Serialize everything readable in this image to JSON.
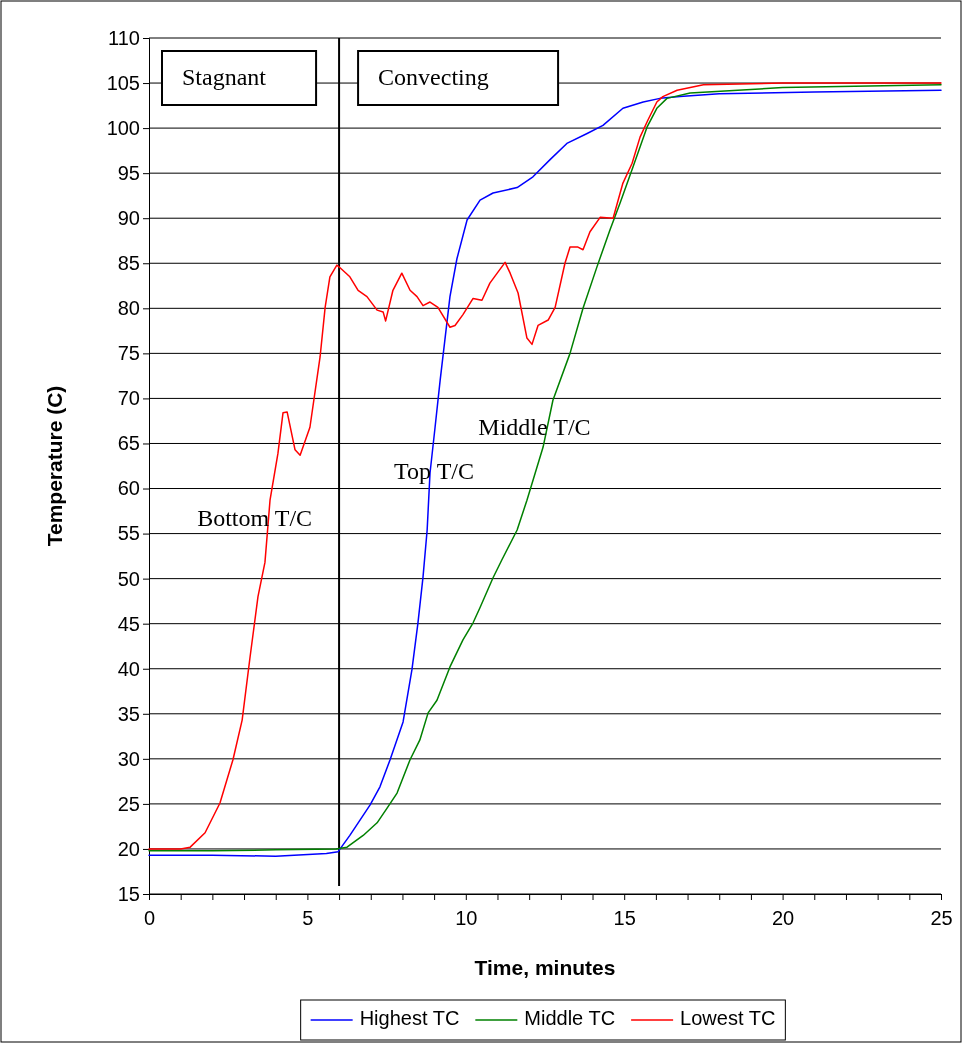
{
  "chart_data": {
    "type": "line",
    "xlabel": "Time, minutes",
    "ylabel": "Temperature (C)",
    "xlim": [
      0,
      25
    ],
    "ylim": [
      15,
      110
    ],
    "xticks": [
      0,
      {
        "value": 1,
        "label": null
      },
      {
        "value": 2,
        "label": null
      },
      {
        "value": 3,
        "label": null
      },
      {
        "value": 4,
        "label": null
      },
      5,
      {
        "value": 6,
        "label": null
      },
      {
        "value": 7,
        "label": null
      },
      {
        "value": 8,
        "label": null
      },
      {
        "value": 9,
        "label": null
      },
      10,
      {
        "value": 11,
        "label": null
      },
      {
        "value": 12,
        "label": null
      },
      {
        "value": 13,
        "label": null
      },
      {
        "value": 14,
        "label": null
      },
      15,
      {
        "value": 16,
        "label": null
      },
      {
        "value": 17,
        "label": null
      },
      {
        "value": 18,
        "label": null
      },
      {
        "value": 19,
        "label": null
      },
      20,
      {
        "value": 21,
        "label": null
      },
      {
        "value": 22,
        "label": null
      },
      {
        "value": 23,
        "label": null
      },
      {
        "value": 24,
        "label": null
      },
      25
    ],
    "yticks": [
      15,
      20,
      25,
      30,
      35,
      40,
      45,
      50,
      55,
      60,
      65,
      70,
      75,
      80,
      85,
      90,
      95,
      100,
      105,
      110
    ],
    "grid": "y",
    "legend": "bottom",
    "marker": "none",
    "line_style": "solid",
    "series": [
      {
        "name": "Highest TC",
        "color": "#0000ff",
        "x": [
          0,
          2,
          4,
          5.6,
          5.97,
          6.34,
          6.66,
          6.98,
          7.29,
          7.61,
          8.02,
          8.3,
          8.49,
          8.65,
          8.78,
          8.87,
          9.03,
          9.19,
          9.34,
          9.5,
          9.72,
          10.04,
          10.45,
          10.86,
          11.62,
          12.12,
          12.66,
          13.19,
          13.83,
          14.33,
          14.96,
          15.6,
          16.13,
          16.76,
          18,
          21,
          25
        ],
        "values": [
          19.3,
          19.3,
          19.2,
          19.5,
          19.7,
          21.5,
          23.2,
          24.9,
          26.9,
          29.9,
          34.1,
          39.9,
          45.1,
          50.2,
          55.4,
          61.7,
          66.8,
          72,
          76.5,
          81.3,
          85.5,
          89.8,
          92,
          92.8,
          93.4,
          94.6,
          96.5,
          98.3,
          99.4,
          100.3,
          102.2,
          102.9,
          103.3,
          103.5,
          103.8,
          104,
          104.2
        ]
      },
      {
        "name": "Middle TC",
        "color": "#008000",
        "x": [
          0,
          2,
          4,
          5.9,
          6.25,
          6.76,
          7.2,
          7.51,
          7.83,
          8.24,
          8.55,
          8.81,
          9.09,
          9.5,
          9.91,
          10.23,
          10.45,
          10.86,
          11.14,
          11.62,
          11.93,
          12.44,
          12.75,
          13.29,
          13.7,
          14.14,
          14.55,
          14.87,
          15.28,
          15.72,
          16.03,
          16.35,
          17.08,
          20,
          25
        ],
        "values": [
          19.8,
          19.8,
          19.9,
          20,
          20.2,
          21.5,
          22.9,
          24.5,
          26.2,
          29.9,
          32.1,
          35.1,
          36.5,
          40.2,
          43.2,
          45.1,
          46.8,
          50.1,
          52.1,
          55.4,
          58.7,
          64.6,
          69.8,
          75,
          80,
          84.6,
          88.7,
          91.7,
          95.7,
          100.1,
          102.2,
          103.3,
          103.9,
          104.5,
          104.8
        ]
      },
      {
        "name": "Lowest TC",
        "color": "#ff0000",
        "x": [
          0,
          1,
          1.3,
          1.77,
          2.24,
          2.65,
          2.94,
          3.19,
          3.44,
          3.66,
          3.82,
          4.07,
          4.23,
          4.36,
          4.61,
          4.77,
          5.08,
          5.4,
          5.56,
          5.71,
          5.93,
          6.03,
          6.34,
          6.6,
          6.88,
          7.2,
          7.39,
          7.47,
          7.7,
          7.98,
          8.24,
          8.46,
          8.65,
          8.87,
          9.12,
          9.5,
          9.66,
          9.91,
          10.23,
          10.51,
          10.76,
          11.24,
          11.4,
          11.65,
          11.93,
          12.09,
          12.28,
          12.6,
          12.82,
          13.13,
          13.29,
          13.54,
          13.7,
          13.92,
          14.24,
          14.65,
          14.96,
          15.25,
          15.5,
          15.75,
          16.03,
          16.22,
          16.67,
          17.5,
          20,
          25
        ],
        "values": [
          20,
          20,
          20.2,
          21.8,
          25.1,
          29.9,
          34.3,
          41.3,
          48,
          51.8,
          58.7,
          63.9,
          68.4,
          68.5,
          64.3,
          63.7,
          66.8,
          74.6,
          80.1,
          83.5,
          84.8,
          84.5,
          83.5,
          82,
          81.3,
          79.8,
          79.6,
          78.6,
          82,
          83.9,
          82,
          81.3,
          80.3,
          80.7,
          80.1,
          77.9,
          78.1,
          79.3,
          81.1,
          80.9,
          82.8,
          85.1,
          83.9,
          81.7,
          76.7,
          76,
          78.1,
          78.7,
          80.1,
          85,
          86.8,
          86.8,
          86.5,
          88.5,
          90.1,
          90,
          93.9,
          96.1,
          99,
          100.9,
          102.9,
          103.5,
          104.2,
          104.8,
          105,
          105
        ]
      }
    ],
    "ref_lines": [
      {
        "axis": "x",
        "value": 6,
        "color": "#000000"
      }
    ],
    "annotations": [
      "Stagnant",
      "Convecting",
      {
        "text": "Bottom T/C",
        "x": 3.76,
        "y": 56.5
      },
      {
        "text": "Top T/C",
        "x": 8.87,
        "y": 61.7
      },
      {
        "text": "Middle T/C",
        "x": 12.55,
        "y": 66.5
      }
    ]
  }
}
